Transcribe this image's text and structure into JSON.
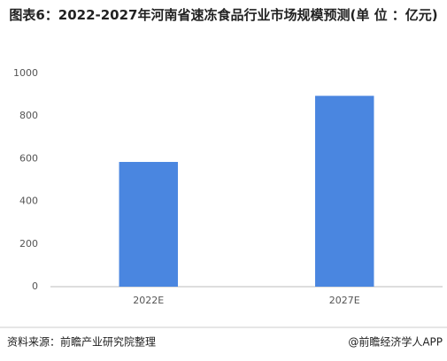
{
  "chart_data": {
    "type": "bar",
    "title": "图表6：2022-2027年河南省速冻食品行业市场规模预测(单 位 ：亿元)",
    "categories": [
      "2022E",
      "2027E"
    ],
    "values": [
      585,
      895
    ],
    "color": "#4a86e0",
    "ylim": [
      0,
      1000
    ],
    "yticks": [
      0,
      200,
      400,
      600,
      800,
      1000
    ],
    "grid": false,
    "source": "资料来源：前瞻产业研究院整理",
    "credit": "@前瞻经济学人APP"
  }
}
